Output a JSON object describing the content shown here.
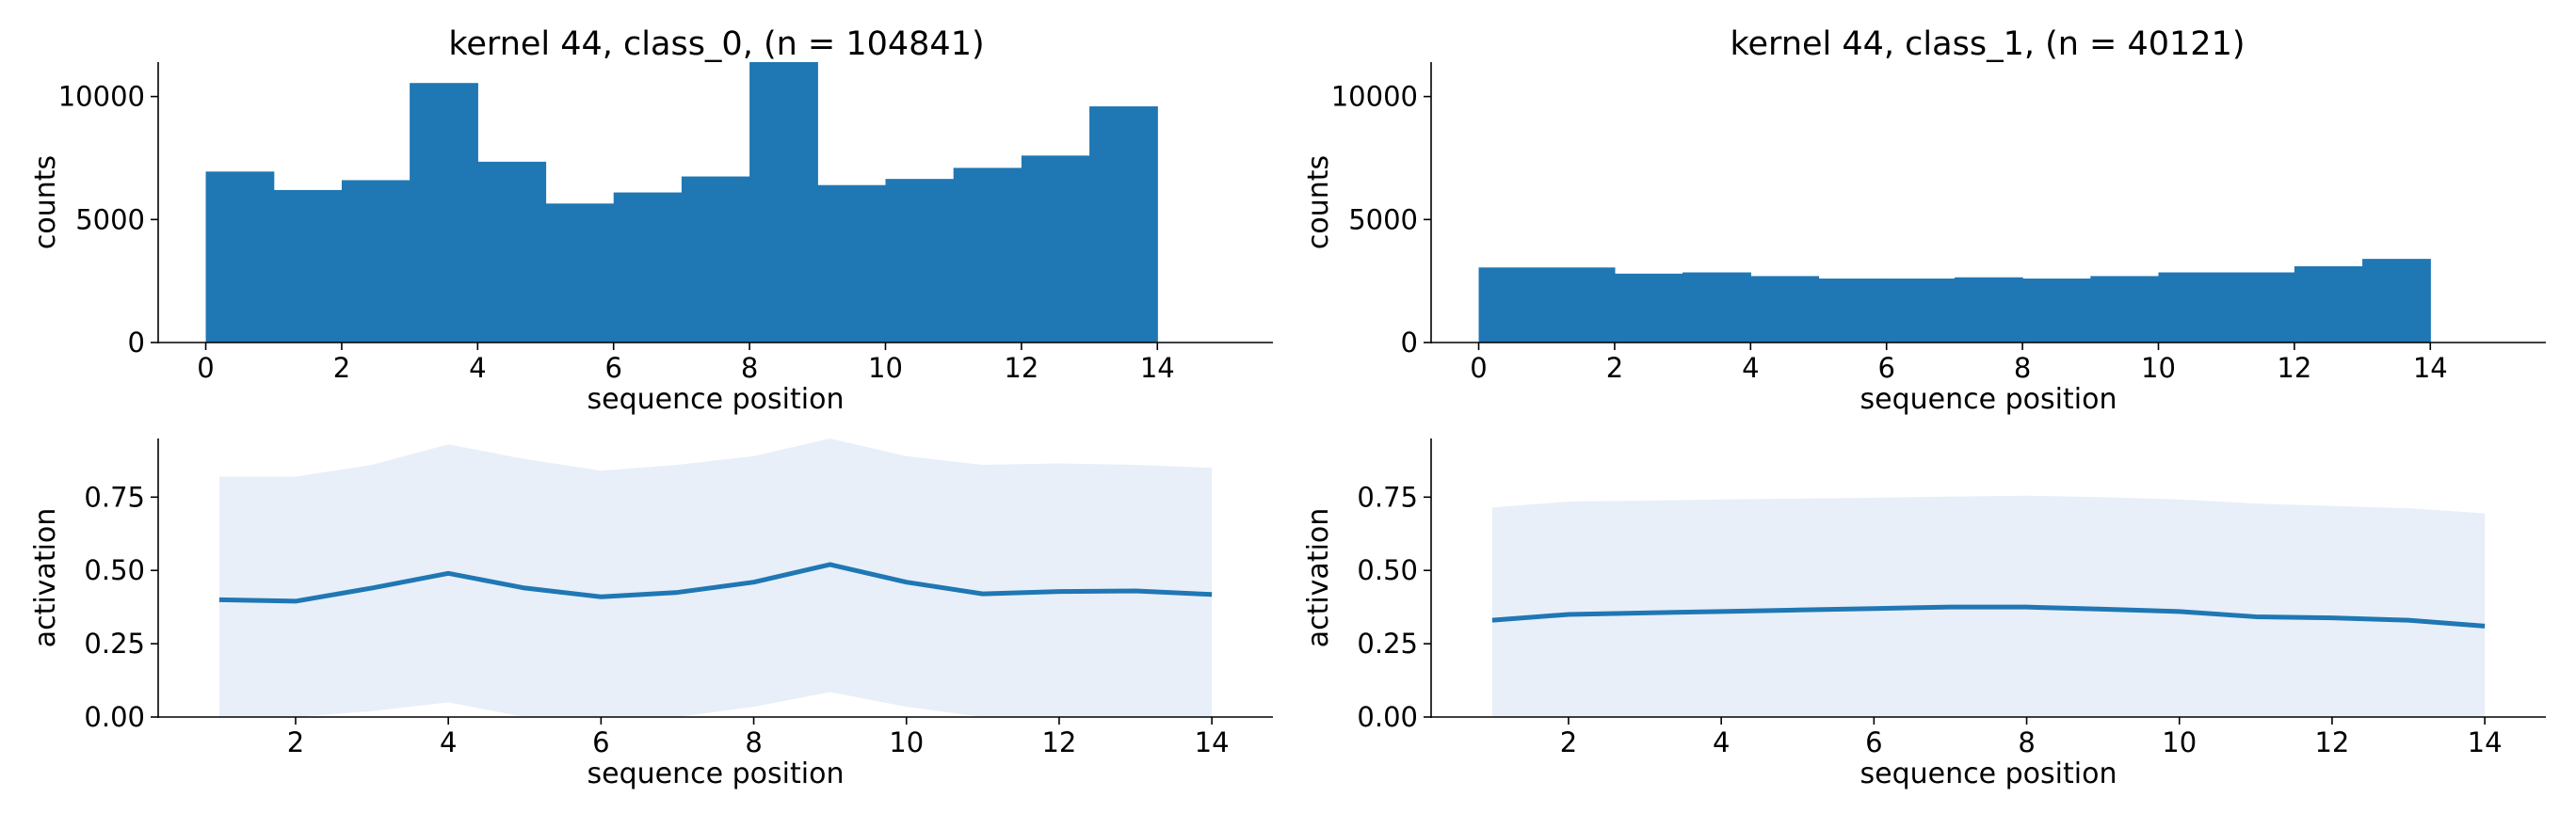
{
  "colors": {
    "bar": "#1f77b4",
    "line": "#1f77b4",
    "band": "#e8eff8",
    "axis": "#000000"
  },
  "chart_data": [
    {
      "type": "bar",
      "title": "kernel 44, class_0, (n = 104841)",
      "xlabel": "sequence position",
      "ylabel": "counts",
      "xlim": [
        -0.7,
        15.7
      ],
      "ylim": [
        0,
        11400
      ],
      "xticks": [
        0,
        2,
        4,
        6,
        8,
        10,
        12,
        14
      ],
      "xtick_labels": [
        "0",
        "2",
        "4",
        "6",
        "8",
        "10",
        "12",
        "14"
      ],
      "yticks": [
        0,
        5000,
        10000
      ],
      "ytick_labels": [
        "0",
        "5000",
        "10000"
      ],
      "bin_edges": [
        0,
        1,
        2,
        3,
        4,
        5,
        6,
        7,
        8,
        9,
        10,
        11,
        12,
        13,
        14
      ],
      "values": [
        6950,
        6200,
        6600,
        10550,
        7350,
        5650,
        6100,
        6750,
        11400,
        6400,
        6650,
        7100,
        7600,
        9600
      ]
    },
    {
      "type": "bar",
      "title": "kernel 44, class_1, (n = 40121)",
      "xlabel": "sequence position",
      "ylabel": "counts",
      "xlim": [
        -0.7,
        15.7
      ],
      "ylim": [
        0,
        11400
      ],
      "xticks": [
        0,
        2,
        4,
        6,
        8,
        10,
        12,
        14
      ],
      "xtick_labels": [
        "0",
        "2",
        "4",
        "6",
        "8",
        "10",
        "12",
        "14"
      ],
      "yticks": [
        0,
        5000,
        10000
      ],
      "ytick_labels": [
        "0",
        "5000",
        "10000"
      ],
      "bin_edges": [
        0,
        1,
        2,
        3,
        4,
        5,
        6,
        7,
        8,
        9,
        10,
        11,
        12,
        13,
        14
      ],
      "values": [
        3050,
        3050,
        2800,
        2850,
        2700,
        2600,
        2600,
        2650,
        2600,
        2700,
        2850,
        2850,
        3100,
        3400
      ]
    },
    {
      "type": "line",
      "title": "",
      "xlabel": "sequence position",
      "ylabel": "activation",
      "xlim": [
        0.2,
        14.8
      ],
      "ylim": [
        0,
        0.95
      ],
      "xticks": [
        2,
        4,
        6,
        8,
        10,
        12,
        14
      ],
      "xtick_labels": [
        "2",
        "4",
        "6",
        "8",
        "10",
        "12",
        "14"
      ],
      "yticks": [
        0,
        0.25,
        0.5,
        0.75
      ],
      "ytick_labels": [
        "0.00",
        "0.25",
        "0.50",
        "0.75"
      ],
      "x": [
        1,
        2,
        3,
        4,
        5,
        6,
        7,
        8,
        9,
        10,
        11,
        12,
        13,
        14
      ],
      "mean": [
        0.4,
        0.395,
        0.44,
        0.49,
        0.44,
        0.41,
        0.425,
        0.46,
        0.52,
        0.46,
        0.42,
        0.428,
        0.43,
        0.418
      ],
      "band_upper": [
        0.82,
        0.82,
        0.86,
        0.93,
        0.88,
        0.84,
        0.86,
        0.89,
        0.96,
        0.89,
        0.86,
        0.865,
        0.86,
        0.85
      ],
      "band_lower": [
        -0.02,
        -0.03,
        0.02,
        0.05,
        0.0,
        -0.02,
        -0.01,
        0.035,
        0.085,
        0.035,
        -0.02,
        -0.01,
        0.0,
        -0.015
      ]
    },
    {
      "type": "line",
      "title": "",
      "xlabel": "sequence position",
      "ylabel": "activation",
      "xlim": [
        0.2,
        14.8
      ],
      "ylim": [
        0,
        0.95
      ],
      "xticks": [
        2,
        4,
        6,
        8,
        10,
        12,
        14
      ],
      "xtick_labels": [
        "2",
        "4",
        "6",
        "8",
        "10",
        "12",
        "14"
      ],
      "yticks": [
        0,
        0.25,
        0.5,
        0.75
      ],
      "ytick_labels": [
        "0.00",
        "0.25",
        "0.50",
        "0.75"
      ],
      "x": [
        1,
        2,
        3,
        4,
        5,
        6,
        7,
        8,
        9,
        10,
        11,
        12,
        13,
        14
      ],
      "mean": [
        0.33,
        0.35,
        0.355,
        0.36,
        0.365,
        0.37,
        0.375,
        0.375,
        0.368,
        0.36,
        0.342,
        0.338,
        0.33,
        0.31
      ],
      "band_upper": [
        0.715,
        0.735,
        0.738,
        0.742,
        0.745,
        0.748,
        0.752,
        0.755,
        0.75,
        0.742,
        0.728,
        0.72,
        0.712,
        0.695
      ],
      "band_lower": [
        -0.05,
        -0.04,
        -0.04,
        -0.04,
        -0.04,
        -0.04,
        -0.04,
        -0.04,
        -0.04,
        -0.04,
        -0.04,
        -0.04,
        -0.04,
        -0.05
      ]
    }
  ]
}
